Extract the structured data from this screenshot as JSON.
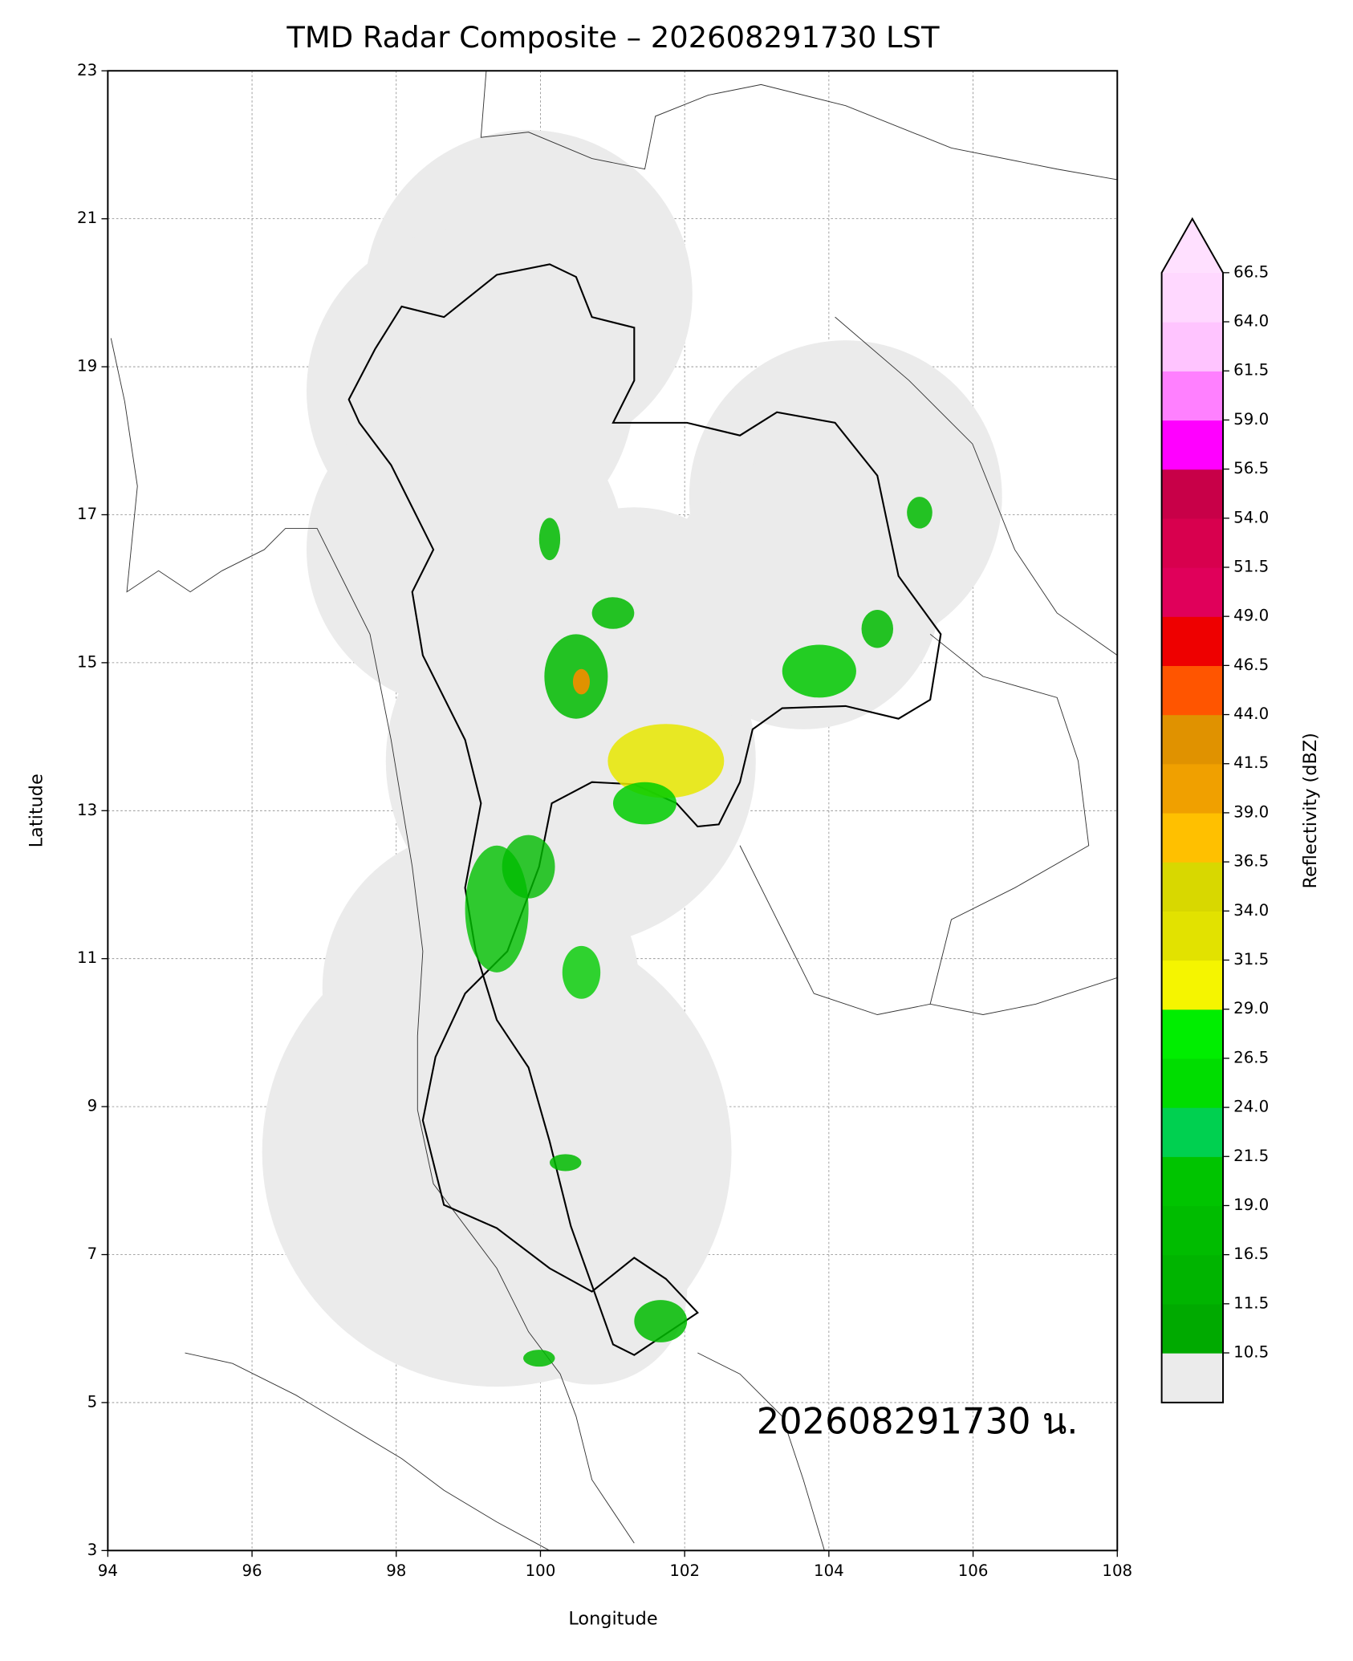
{
  "chart_data": {
    "type": "map",
    "title": "TMD Radar Composite – 202608291730 LST",
    "x_label": "Longitude",
    "y_label": "Latitude",
    "xlim": [
      94,
      108
    ],
    "ylim": [
      3,
      23
    ],
    "xticks": [
      94,
      96,
      98,
      100,
      102,
      104,
      106,
      108
    ],
    "yticks": [
      3,
      5,
      7,
      9,
      11,
      13,
      15,
      17,
      19,
      21,
      23
    ],
    "grid": true,
    "annotation": "202608291730 น.",
    "colorbar": {
      "label": "Reflectivity (dBZ)",
      "ticks": [
        10.5,
        11.5,
        16.5,
        {
          "value": 19,
          "label": "19.0"
        },
        21.5,
        {
          "value": 24,
          "label": "24.0"
        },
        26.5,
        {
          "value": 29,
          "label": "29.0"
        },
        31.5,
        {
          "value": 34,
          "label": "34.0"
        },
        36.5,
        {
          "value": 39,
          "label": "39.0"
        },
        41.5,
        {
          "value": 44,
          "label": "44.0"
        },
        46.5,
        {
          "value": 49,
          "label": "49.0"
        },
        51.5,
        {
          "value": 54,
          "label": "54.0"
        },
        56.5,
        {
          "value": 59,
          "label": "59.0"
        },
        61.5,
        {
          "value": 64,
          "label": "64.0"
        },
        66.5
      ],
      "colors": [
        "#00aa00",
        "#00b400",
        "#00bc00",
        "#00c400",
        "#00d050",
        "#00dd00",
        "#00ee00",
        "#f5f500",
        "#e2e200",
        "#d8d800",
        "#ffc000",
        "#f0a000",
        "#e09200",
        "#ff5500",
        "#ee0000",
        "#e0005a",
        "#d8004e",
        "#c80048",
        "#ff00ff",
        "#ff80ff",
        "#ffc4ff",
        "#ffd8ff"
      ],
      "under_color": "#ebebeb",
      "over_color": "#ffe0ff"
    }
  }
}
